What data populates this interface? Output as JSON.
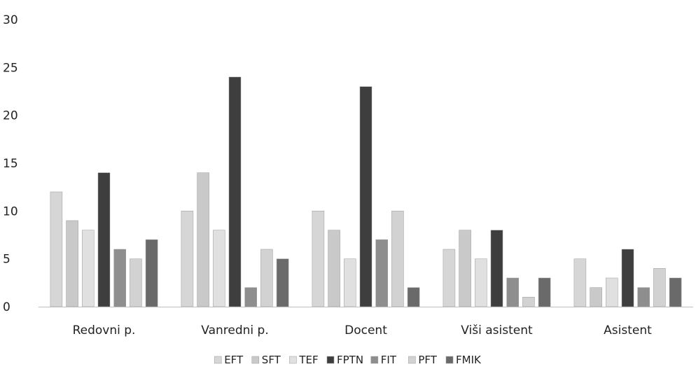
{
  "chart_data": {
    "type": "bar",
    "title": "",
    "xlabel": "",
    "ylabel": "",
    "ylim": [
      0,
      30
    ],
    "yticks": [
      0,
      5,
      10,
      15,
      20,
      25,
      30
    ],
    "grid": false,
    "legend_position": "bottom",
    "categories": [
      "Redovni p.",
      "Vanredni p.",
      "Docent",
      "Viši asistent",
      "Asistent"
    ],
    "series": [
      {
        "name": "EFT",
        "color": "#d6d6d6",
        "values": [
          12,
          10,
          10,
          6,
          5
        ]
      },
      {
        "name": "SFT",
        "color": "#c9c9c9",
        "values": [
          9,
          14,
          8,
          8,
          2
        ]
      },
      {
        "name": "TEF",
        "color": "#e0e0e0",
        "values": [
          8,
          8,
          5,
          5,
          3
        ]
      },
      {
        "name": "FPTN",
        "color": "#3e3e3e",
        "values": [
          14,
          24,
          23,
          8,
          6
        ]
      },
      {
        "name": "FIT",
        "color": "#8e8e8e",
        "values": [
          6,
          2,
          7,
          3,
          2
        ]
      },
      {
        "name": "PFT",
        "color": "#d2d2d2",
        "values": [
          5,
          6,
          10,
          1,
          4
        ]
      },
      {
        "name": "FMIK",
        "color": "#6a6a6a",
        "values": [
          7,
          5,
          2,
          3,
          3
        ]
      }
    ]
  }
}
